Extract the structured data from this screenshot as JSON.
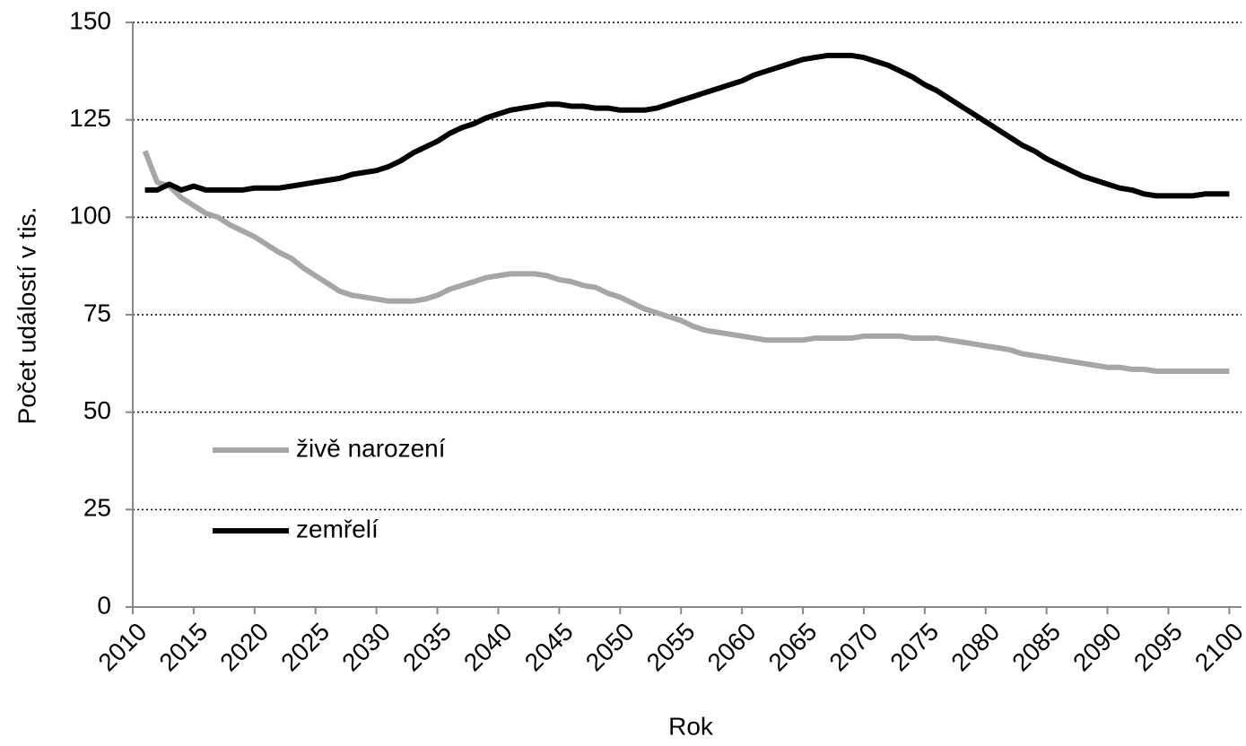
{
  "chart_data": {
    "type": "line",
    "xlabel": "Rok",
    "ylabel": "Počet událostí v tis.",
    "x": [
      2011,
      2012,
      2013,
      2014,
      2015,
      2016,
      2017,
      2018,
      2019,
      2020,
      2021,
      2022,
      2023,
      2024,
      2025,
      2026,
      2027,
      2028,
      2029,
      2030,
      2031,
      2032,
      2033,
      2034,
      2035,
      2036,
      2037,
      2038,
      2039,
      2040,
      2041,
      2042,
      2043,
      2044,
      2045,
      2046,
      2047,
      2048,
      2049,
      2050,
      2051,
      2052,
      2053,
      2054,
      2055,
      2056,
      2057,
      2058,
      2059,
      2060,
      2061,
      2062,
      2063,
      2064,
      2065,
      2066,
      2067,
      2068,
      2069,
      2070,
      2071,
      2072,
      2073,
      2074,
      2075,
      2076,
      2077,
      2078,
      2079,
      2080,
      2081,
      2082,
      2083,
      2084,
      2085,
      2086,
      2087,
      2088,
      2089,
      2090,
      2091,
      2092,
      2093,
      2094,
      2095,
      2096,
      2097,
      2098,
      2099,
      2100
    ],
    "series": [
      {
        "name": "živě narození",
        "color": "#a6a6a6",
        "values": [
          117,
          109,
          108,
          105,
          103,
          101,
          100,
          98,
          96.5,
          95,
          93,
          91,
          89.5,
          87,
          85,
          83,
          81,
          80,
          79.5,
          79,
          78.5,
          78.5,
          78.5,
          79,
          80,
          81.5,
          82.5,
          83.5,
          84.5,
          85,
          85.5,
          85.5,
          85.5,
          85,
          84,
          83.5,
          82.5,
          82,
          80.5,
          79.5,
          78,
          76.5,
          75.5,
          74.5,
          73.5,
          72,
          71,
          70.5,
          70,
          69.5,
          69,
          68.5,
          68.5,
          68.5,
          68.5,
          69,
          69,
          69,
          69,
          69.5,
          69.5,
          69.5,
          69.5,
          69,
          69,
          69,
          68.5,
          68,
          67.5,
          67,
          66.5,
          66,
          65,
          64.5,
          64,
          63.5,
          63,
          62.5,
          62,
          61.5,
          61.5,
          61,
          61,
          60.5,
          60.5,
          60.5,
          60.5,
          60.5,
          60.5,
          60.5
        ]
      },
      {
        "name": "zemřelí",
        "color": "#000000",
        "values": [
          107,
          107,
          108.5,
          107,
          108,
          107,
          107,
          107,
          107,
          107.5,
          107.5,
          107.5,
          108,
          108.5,
          109,
          109.5,
          110,
          111,
          111.5,
          112,
          113,
          114.5,
          116.5,
          118,
          119.5,
          121.5,
          123,
          124,
          125.5,
          126.5,
          127.5,
          128,
          128.5,
          129,
          129,
          128.5,
          128.5,
          128,
          128,
          127.5,
          127.5,
          127.5,
          128,
          129,
          130,
          131,
          132,
          133,
          134,
          135,
          136.5,
          137.5,
          138.5,
          139.5,
          140.5,
          141,
          141.5,
          141.5,
          141.5,
          141,
          140,
          139,
          137.5,
          136,
          134,
          132.5,
          130.5,
          128.5,
          126.5,
          124.5,
          122.5,
          120.5,
          118.5,
          117,
          115,
          113.5,
          112,
          110.5,
          109.5,
          108.5,
          107.5,
          107,
          106,
          105.5,
          105.5,
          105.5,
          105.5,
          106,
          106,
          106
        ]
      }
    ],
    "xlim": [
      2010,
      2101
    ],
    "xticks": [
      2010,
      2015,
      2020,
      2025,
      2030,
      2035,
      2040,
      2045,
      2050,
      2055,
      2060,
      2065,
      2070,
      2075,
      2080,
      2085,
      2090,
      2095,
      2100
    ],
    "ylim": [
      0,
      150
    ],
    "yticks": [
      0,
      25,
      50,
      75,
      100,
      125,
      150
    ],
    "grid": true,
    "legend": "lower left"
  }
}
